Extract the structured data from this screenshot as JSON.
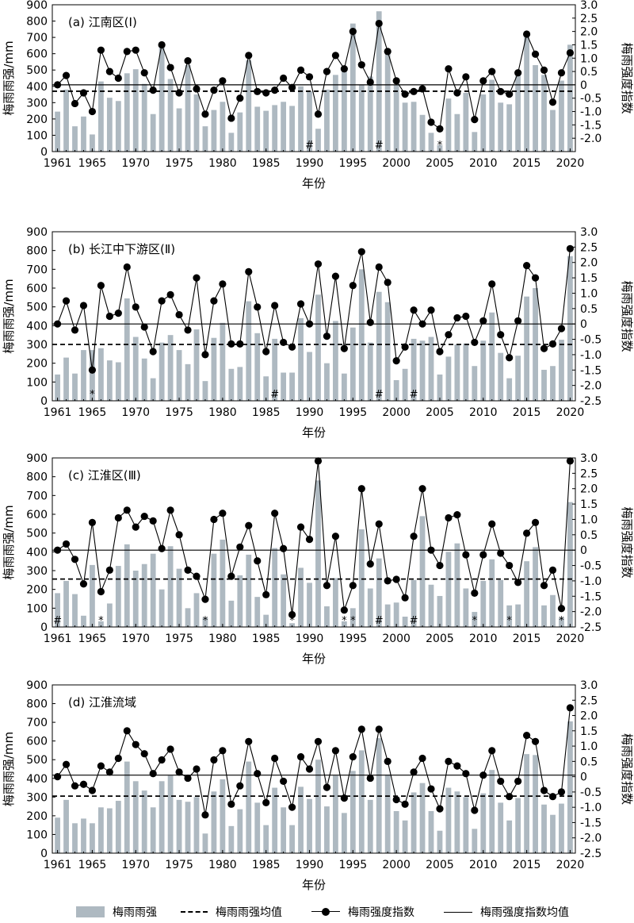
{
  "chart_data": [
    {
      "type": "bar+line",
      "panel_label": "(a) 江南区(Ⅰ)",
      "ylabel": "梅雨雨强/mm",
      "y2label": "梅雨强度指数",
      "xlabel": "年份",
      "ylim": [
        0,
        900
      ],
      "y2lim": [
        -2.5,
        3.0
      ],
      "yticks": [
        0,
        100,
        200,
        300,
        400,
        500,
        600,
        700,
        800,
        900
      ],
      "y2ticks": [
        "-2.0",
        "-1.5",
        "-1.0",
        "-0.5",
        "0",
        "0.5",
        "1.0",
        "1.5",
        "2.0",
        "2.5",
        "3.0"
      ],
      "xticks": [
        "1961",
        "1965",
        "1970",
        "1975",
        "1980",
        "1985",
        "1990",
        "1995",
        "2000",
        "2005",
        "2010",
        "2015",
        "2020"
      ],
      "years": [
        1961,
        1962,
        1963,
        1964,
        1965,
        1966,
        1967,
        1968,
        1969,
        1970,
        1971,
        1972,
        1973,
        1974,
        1975,
        1976,
        1977,
        1978,
        1979,
        1980,
        1981,
        1982,
        1983,
        1984,
        1985,
        1986,
        1987,
        1988,
        1989,
        1990,
        1991,
        1992,
        1993,
        1994,
        1995,
        1996,
        1997,
        1998,
        1999,
        2000,
        2001,
        2002,
        2003,
        2004,
        2005,
        2006,
        2007,
        2008,
        2009,
        2010,
        2011,
        2012,
        2013,
        2014,
        2015,
        2016,
        2017,
        2018,
        2019,
        2020
      ],
      "rain": [
        245,
        380,
        155,
        215,
        105,
        430,
        330,
        310,
        480,
        505,
        415,
        230,
        640,
        445,
        265,
        530,
        350,
        155,
        255,
        305,
        115,
        240,
        560,
        275,
        250,
        285,
        305,
        280,
        400,
        370,
        140,
        380,
        470,
        520,
        785,
        410,
        460,
        860,
        600,
        410,
        300,
        305,
        225,
        115,
        40,
        325,
        230,
        360,
        120,
        350,
        440,
        300,
        290,
        490,
        720,
        530,
        470,
        255,
        435,
        655
      ],
      "index": [
        0,
        0.35,
        -0.7,
        -0.3,
        -1.0,
        1.3,
        0.5,
        0.25,
        1.25,
        1.3,
        0.45,
        -0.2,
        1.5,
        0.65,
        -0.3,
        0.9,
        -0.15,
        -1.1,
        -0.2,
        0.15,
        -1.25,
        -0.5,
        1.1,
        -0.25,
        -0.3,
        -0.2,
        0.25,
        -0.1,
        0.55,
        0.3,
        -1.1,
        0.5,
        1.1,
        0.6,
        2.0,
        0.75,
        0.1,
        2.3,
        1.25,
        0.15,
        -0.35,
        -0.25,
        -0.15,
        -1.4,
        -1.65,
        0.6,
        -0.3,
        0.3,
        -1.3,
        0.15,
        0.5,
        -0.25,
        -0.35,
        0.45,
        1.9,
        1.15,
        0.55,
        -0.65,
        0.45,
        1.2
      ],
      "rain_mean": 370,
      "index_mean": 0,
      "markers": [
        {
          "year": 1990,
          "symbol": "#"
        },
        {
          "year": 1998,
          "symbol": "#"
        },
        {
          "year": 2005,
          "symbol": "*"
        }
      ]
    },
    {
      "type": "bar+line",
      "panel_label": "(b) 长江中下游区(Ⅱ)",
      "ylabel": "梅雨雨强/mm",
      "y2label": "梅雨强度指数",
      "xlabel": "年份",
      "ylim": [
        0,
        900
      ],
      "y2lim": [
        -2.5,
        3.0
      ],
      "yticks": [
        0,
        100,
        200,
        300,
        400,
        500,
        600,
        700,
        800,
        900
      ],
      "y2ticks": [
        "-2.5",
        "-2.0",
        "-1.5",
        "-1.0",
        "-0.5",
        "0",
        "0.5",
        "1.0",
        "1.5",
        "2.0",
        "2.5",
        "3.0"
      ],
      "xticks": [
        "1961",
        "1965",
        "1970",
        "1975",
        "1980",
        "1985",
        "1990",
        "1995",
        "2000",
        "2005",
        "2010",
        "2015",
        "2020"
      ],
      "years": [
        1961,
        1962,
        1963,
        1964,
        1965,
        1966,
        1967,
        1968,
        1969,
        1970,
        1971,
        1972,
        1973,
        1974,
        1975,
        1976,
        1977,
        1978,
        1979,
        1980,
        1981,
        1982,
        1983,
        1984,
        1985,
        1986,
        1987,
        1988,
        1989,
        1990,
        1991,
        1992,
        1993,
        1994,
        1995,
        1996,
        1997,
        1998,
        1999,
        2000,
        2001,
        2002,
        2003,
        2004,
        2005,
        2006,
        2007,
        2008,
        2009,
        2010,
        2011,
        2012,
        2013,
        2014,
        2015,
        2016,
        2017,
        2018,
        2019,
        2020
      ],
      "rain": [
        140,
        230,
        145,
        270,
        270,
        280,
        215,
        205,
        545,
        340,
        225,
        120,
        310,
        350,
        270,
        195,
        380,
        105,
        335,
        415,
        170,
        180,
        530,
        360,
        130,
        330,
        150,
        150,
        440,
        260,
        565,
        200,
        425,
        145,
        390,
        700,
        310,
        580,
        525,
        110,
        170,
        330,
        320,
        340,
        140,
        235,
        300,
        305,
        185,
        320,
        470,
        255,
        120,
        240,
        555,
        600,
        165,
        185,
        325,
        770
      ],
      "index": [
        0,
        0.75,
        -0.2,
        0.6,
        -1.5,
        1.25,
        0.25,
        0.35,
        1.85,
        0.55,
        -0.1,
        -0.9,
        0.75,
        0.95,
        0.3,
        -0.2,
        1.5,
        -1.0,
        0.75,
        1.3,
        -0.65,
        -0.65,
        1.7,
        0.55,
        -0.9,
        0.6,
        -0.6,
        -0.75,
        0.65,
        0,
        1.95,
        -0.4,
        1.55,
        -0.8,
        1.25,
        2.35,
        0.05,
        1.85,
        1.35,
        -1.2,
        -0.75,
        0.45,
        0,
        0.45,
        -0.9,
        -0.35,
        0.2,
        0.25,
        -0.6,
        0.1,
        1.3,
        -0.35,
        -1.1,
        0.1,
        1.9,
        1.5,
        -0.8,
        -0.65,
        -0.15,
        2.45
      ],
      "rain_mean": 300,
      "index_mean": 0,
      "markers": [
        {
          "year": 1965,
          "symbol": "*"
        },
        {
          "year": 1986,
          "symbol": "#"
        },
        {
          "year": 1998,
          "symbol": "#"
        },
        {
          "year": 2002,
          "symbol": "#"
        }
      ]
    },
    {
      "type": "bar+line",
      "panel_label": "(c) 江淮区(Ⅲ)",
      "ylabel": "梅雨雨强/mm",
      "y2label": "梅雨强度指数",
      "xlabel": "年份",
      "ylim": [
        0,
        900
      ],
      "y2lim": [
        -2.5,
        3.0
      ],
      "yticks": [
        0,
        100,
        200,
        300,
        400,
        500,
        600,
        700,
        800,
        900
      ],
      "y2ticks": [
        "-2.5",
        "-2.0",
        "-1.5",
        "-1.0",
        "-0.5",
        "0",
        "0.5",
        "1.0",
        "1.5",
        "2.0",
        "2.5",
        "3.0"
      ],
      "xticks": [
        "1961",
        "1965",
        "1970",
        "1975",
        "1980",
        "1985",
        "1990",
        "1995",
        "2000",
        "2005",
        "2010",
        "2015",
        "2020"
      ],
      "years": [
        1961,
        1962,
        1963,
        1964,
        1965,
        1966,
        1967,
        1968,
        1969,
        1970,
        1971,
        1972,
        1973,
        1974,
        1975,
        1976,
        1977,
        1978,
        1979,
        1980,
        1981,
        1982,
        1983,
        1984,
        1985,
        1986,
        1987,
        1988,
        1989,
        1990,
        1991,
        1992,
        1993,
        1994,
        1995,
        1996,
        1997,
        1998,
        1999,
        2000,
        2001,
        2002,
        2003,
        2004,
        2005,
        2006,
        2007,
        2008,
        2009,
        2010,
        2011,
        2012,
        2013,
        2014,
        2015,
        2016,
        2017,
        2018,
        2019,
        2020
      ],
      "rain": [
        180,
        245,
        175,
        60,
        330,
        30,
        125,
        325,
        440,
        300,
        335,
        390,
        200,
        430,
        310,
        100,
        180,
        50,
        390,
        465,
        140,
        275,
        385,
        160,
        65,
        420,
        280,
        20,
        315,
        235,
        780,
        110,
        260,
        30,
        100,
        520,
        205,
        365,
        120,
        130,
        55,
        250,
        590,
        225,
        165,
        400,
        445,
        205,
        80,
        245,
        360,
        250,
        115,
        120,
        350,
        425,
        115,
        170,
        50,
        665
      ],
      "index": [
        0,
        0.2,
        -0.3,
        -1.1,
        0.9,
        -1.35,
        -0.65,
        1.05,
        1.3,
        0.75,
        1.1,
        0.95,
        0.05,
        1.3,
        0.5,
        -0.65,
        -0.85,
        -1.6,
        1.0,
        1.2,
        -0.85,
        0.1,
        0.8,
        -0.35,
        -1.45,
        1.2,
        0.05,
        -2.1,
        0.75,
        0.35,
        2.9,
        -1.15,
        0.45,
        -1.95,
        -1.15,
        2.0,
        -0.45,
        0.85,
        -1.0,
        -0.95,
        -1.55,
        0.45,
        2.0,
        0,
        -0.5,
        1.05,
        1.15,
        -0.15,
        -1.4,
        -0.15,
        0.85,
        -0.1,
        -0.5,
        -1.05,
        0.55,
        0.9,
        -1.15,
        -0.65,
        -1.9,
        2.9
      ],
      "rain_mean": 255,
      "index_mean": 0,
      "markers": [
        {
          "year": 1961,
          "symbol": "#"
        },
        {
          "year": 1966,
          "symbol": "*"
        },
        {
          "year": 1978,
          "symbol": "*"
        },
        {
          "year": 1988,
          "symbol": "*"
        },
        {
          "year": 1994,
          "symbol": "*"
        },
        {
          "year": 1995,
          "symbol": "*"
        },
        {
          "year": 1998,
          "symbol": "#"
        },
        {
          "year": 2002,
          "symbol": "#"
        },
        {
          "year": 2009,
          "symbol": "*"
        },
        {
          "year": 2013,
          "symbol": "*"
        },
        {
          "year": 2019,
          "symbol": "*"
        }
      ]
    },
    {
      "type": "bar+line",
      "panel_label": "(d) 江淮流域",
      "ylabel": "梅雨雨强/mm",
      "y2label": "梅雨强度指数",
      "xlabel": "年份",
      "ylim": [
        0,
        900
      ],
      "y2lim": [
        -2.5,
        3.0
      ],
      "yticks": [
        0,
        100,
        200,
        300,
        400,
        500,
        600,
        700,
        800,
        900
      ],
      "y2ticks": [
        "-2.5",
        "-2.0",
        "-1.5",
        "-1.0",
        "-0.5",
        "0",
        "0.5",
        "1.0",
        "1.5",
        "2.0",
        "2.5",
        "3.0"
      ],
      "xticks": [
        "1961",
        "1965",
        "1970",
        "1975",
        "1980",
        "1985",
        "1990",
        "1995",
        "2000",
        "2005",
        "2010",
        "2015",
        "2020"
      ],
      "years": [
        1961,
        1962,
        1963,
        1964,
        1965,
        1966,
        1967,
        1968,
        1969,
        1970,
        1971,
        1972,
        1973,
        1974,
        1975,
        1976,
        1977,
        1978,
        1979,
        1980,
        1981,
        1982,
        1983,
        1984,
        1985,
        1986,
        1987,
        1988,
        1989,
        1990,
        1991,
        1992,
        1993,
        1994,
        1995,
        1996,
        1997,
        1998,
        1999,
        2000,
        2001,
        2002,
        2003,
        2004,
        2005,
        2006,
        2007,
        2008,
        2009,
        2010,
        2011,
        2012,
        2013,
        2014,
        2015,
        2016,
        2017,
        2018,
        2019,
        2020
      ],
      "rain": [
        190,
        285,
        160,
        185,
        160,
        245,
        240,
        280,
        490,
        385,
        335,
        245,
        385,
        415,
        285,
        275,
        300,
        105,
        330,
        395,
        145,
        235,
        490,
        270,
        150,
        350,
        245,
        150,
        355,
        290,
        500,
        250,
        415,
        215,
        440,
        550,
        285,
        615,
        420,
        225,
        175,
        325,
        375,
        225,
        120,
        350,
        330,
        300,
        130,
        320,
        445,
        270,
        175,
        295,
        530,
        525,
        260,
        205,
        265,
        705
      ],
      "index": [
        0,
        0.4,
        -0.3,
        -0.25,
        -0.45,
        0.35,
        0.15,
        0.6,
        1.5,
        1.05,
        0.75,
        0.1,
        0.55,
        0.9,
        0.15,
        -0.05,
        0.25,
        -1.25,
        0.55,
        0.85,
        -0.9,
        -0.3,
        1.15,
        0.1,
        -0.85,
        0.6,
        -0.15,
        -1.0,
        0.65,
        0.25,
        1.15,
        -0.35,
        0.85,
        -0.7,
        0.65,
        1.55,
        -0.05,
        1.55,
        0.5,
        -0.75,
        -0.9,
        0.15,
        0.6,
        -0.4,
        -1.05,
        0.5,
        0.35,
        0.1,
        -1.1,
        0.05,
        0.85,
        -0.15,
        -0.65,
        -0.15,
        1.35,
        1.15,
        -0.45,
        -0.65,
        -0.5,
        2.25
      ],
      "rain_mean": 305,
      "index_mean": 0.05,
      "markers": []
    }
  ],
  "legend": {
    "bar_label": "梅雨雨强",
    "rain_mean_label": "梅雨雨强均值",
    "index_label": "梅雨强度指数",
    "index_mean_label": "梅雨强度指数均值"
  },
  "colors": {
    "bar": "#aeb9c1",
    "line": "#000000"
  }
}
